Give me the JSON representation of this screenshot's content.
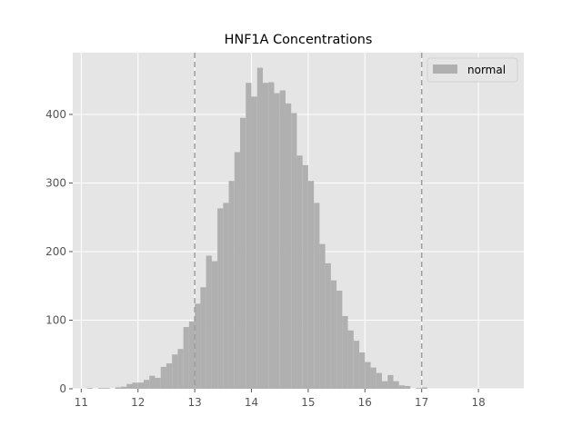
{
  "chart_data": {
    "type": "bar",
    "title": "HNF1A Concentrations",
    "xlabel": "",
    "ylabel": "",
    "xlim": [
      10.85,
      18.8
    ],
    "ylim": [
      0,
      490
    ],
    "xticks": [
      11,
      12,
      13,
      14,
      15,
      16,
      17,
      18
    ],
    "yticks": [
      0,
      100,
      200,
      300,
      400
    ],
    "grid": true,
    "legend": {
      "position": "top-right",
      "entries": [
        "normal"
      ]
    },
    "reference_lines": [
      13,
      17
    ],
    "bin_width": 0.1,
    "bin_start": 11.0,
    "series": [
      {
        "name": "normal",
        "values": [
          0,
          1,
          0,
          1,
          1,
          0,
          2,
          3,
          7,
          9,
          9,
          13,
          19,
          16,
          32,
          37,
          50,
          58,
          90,
          98,
          124,
          148,
          194,
          186,
          263,
          271,
          303,
          345,
          395,
          446,
          426,
          468,
          446,
          447,
          431,
          435,
          416,
          402,
          340,
          326,
          303,
          271,
          211,
          183,
          158,
          143,
          106,
          85,
          70,
          53,
          39,
          31,
          23,
          11,
          20,
          11,
          5,
          4,
          0,
          1,
          2,
          0
        ]
      }
    ],
    "colors": {
      "bars": "#b0b0b0",
      "background": "#e5e5e5",
      "grid": "#ffffff",
      "reference_line": "#9e9e9e"
    }
  }
}
